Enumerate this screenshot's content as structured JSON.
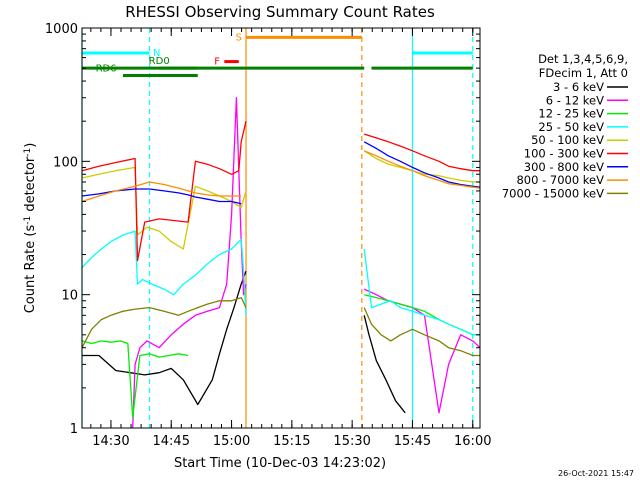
{
  "chart_data": {
    "type": "line",
    "title": "RHESSI Observing Summary Count Rates",
    "xlabel": "Start Time (10-Dec-03 14:23:02)",
    "ylabel_main": "Count Rate (s",
    "ylabel_sup1": "-1",
    "ylabel_mid": " detector",
    "ylabel_sup2": "-1",
    "ylabel_end": ")",
    "y_scale": "log",
    "ylim": [
      1,
      1000
    ],
    "xlim_minutes": [
      14.38,
      16.03
    ],
    "x_ticks": [
      {
        "t": 14.5,
        "label": "14:30"
      },
      {
        "t": 14.75,
        "label": "14:45"
      },
      {
        "t": 15.0,
        "label": "15:00"
      },
      {
        "t": 15.25,
        "label": "15:15"
      },
      {
        "t": 15.5,
        "label": "15:30"
      },
      {
        "t": 15.75,
        "label": "15:45"
      },
      {
        "t": 16.0,
        "label": "16:00"
      }
    ],
    "y_ticks": [
      {
        "v": 1,
        "label": "1"
      },
      {
        "v": 10,
        "label": "10"
      },
      {
        "v": 100,
        "label": "100"
      },
      {
        "v": 1000,
        "label": "1000"
      }
    ],
    "legend_title_1": "Det 1,3,4,5,6,9,",
    "legend_title_2": "FDecim 1, Att 0",
    "legend_placement": "right",
    "series": [
      {
        "name": "3 - 6 keV",
        "color": "#000000",
        "points": [
          [
            14.38,
            3.5
          ],
          [
            14.45,
            3.5
          ],
          [
            14.52,
            2.7
          ],
          [
            14.58,
            2.6
          ],
          [
            14.64,
            2.5
          ],
          [
            14.7,
            2.6
          ],
          [
            14.75,
            2.8
          ],
          [
            14.8,
            2.3
          ],
          [
            14.86,
            1.5
          ],
          [
            14.92,
            2.3
          ],
          [
            14.95,
            3.6
          ],
          [
            14.98,
            5.5
          ],
          [
            15.01,
            8
          ],
          [
            15.04,
            12
          ],
          [
            15.06,
            15
          ],
          [
            null,
            null
          ],
          [
            15.55,
            7
          ],
          [
            15.57,
            5
          ],
          [
            15.6,
            3.2
          ],
          [
            15.64,
            2.3
          ],
          [
            15.68,
            1.6
          ],
          [
            15.72,
            1.3
          ]
        ]
      },
      {
        "name": "6 - 12 keV",
        "color": "#ff00ff",
        "points": [
          [
            14.59,
            1
          ],
          [
            14.6,
            3
          ],
          [
            14.62,
            4
          ],
          [
            14.65,
            4.5
          ],
          [
            14.7,
            4
          ],
          [
            14.75,
            5
          ],
          [
            14.8,
            6
          ],
          [
            14.85,
            7
          ],
          [
            14.9,
            7.5
          ],
          [
            14.95,
            8
          ],
          [
            14.98,
            12
          ],
          [
            15.0,
            40
          ],
          [
            15.02,
            300
          ],
          [
            15.04,
            25
          ],
          [
            15.05,
            10
          ],
          [
            15.06,
            12
          ],
          [
            null,
            null
          ],
          [
            15.55,
            11
          ],
          [
            15.6,
            10
          ],
          [
            15.65,
            9
          ],
          [
            15.7,
            8.5
          ],
          [
            15.75,
            8
          ],
          [
            15.8,
            7
          ],
          [
            15.86,
            1.3
          ],
          [
            15.9,
            3
          ],
          [
            15.95,
            5
          ],
          [
            16.0,
            4.5
          ],
          [
            16.03,
            4
          ]
        ]
      },
      {
        "name": "12 - 25 keV",
        "color": "#00ee00",
        "points": [
          [
            14.38,
            4.5
          ],
          [
            14.42,
            4.3
          ],
          [
            14.46,
            4.5
          ],
          [
            14.5,
            4.4
          ],
          [
            14.54,
            4.5
          ],
          [
            14.57,
            4.3
          ],
          [
            14.59,
            1.2
          ],
          [
            14.62,
            3.5
          ],
          [
            14.66,
            3.6
          ],
          [
            14.7,
            3.4
          ],
          [
            14.74,
            3.5
          ],
          [
            14.78,
            3.6
          ],
          [
            14.82,
            3.5
          ],
          [
            null,
            null
          ],
          [
            15.55,
            10
          ],
          [
            15.6,
            9.5
          ],
          [
            15.65,
            9
          ],
          [
            15.7,
            8.5
          ],
          [
            15.75,
            8
          ],
          [
            15.8,
            7.5
          ],
          [
            15.86,
            6.5
          ],
          [
            15.9,
            6
          ],
          [
            15.95,
            5.5
          ],
          [
            16.0,
            5
          ],
          [
            16.03,
            5
          ]
        ]
      },
      {
        "name": "25 - 50 keV",
        "color": "#00ffff",
        "points": [
          [
            14.38,
            16
          ],
          [
            14.42,
            19
          ],
          [
            14.46,
            22
          ],
          [
            14.5,
            25
          ],
          [
            14.55,
            28
          ],
          [
            14.6,
            30
          ],
          [
            14.61,
            12
          ],
          [
            14.63,
            13
          ],
          [
            14.67,
            12
          ],
          [
            14.72,
            11
          ],
          [
            14.76,
            10
          ],
          [
            14.8,
            12
          ],
          [
            14.85,
            14
          ],
          [
            14.9,
            17
          ],
          [
            14.95,
            20
          ],
          [
            15.0,
            22
          ],
          [
            15.04,
            26
          ],
          [
            15.05,
            15
          ],
          [
            15.06,
            7
          ],
          [
            null,
            null
          ],
          [
            15.55,
            22
          ],
          [
            15.58,
            8
          ],
          [
            15.62,
            8.5
          ],
          [
            15.66,
            9
          ],
          [
            15.7,
            8
          ],
          [
            15.75,
            7.5
          ],
          [
            15.8,
            7
          ],
          [
            15.86,
            6.5
          ],
          [
            15.9,
            6
          ],
          [
            15.95,
            5.5
          ],
          [
            16.0,
            5
          ],
          [
            16.03,
            5
          ]
        ]
      },
      {
        "name": "50 - 100 keV",
        "color": "#cccc00",
        "points": [
          [
            14.38,
            75
          ],
          [
            14.45,
            80
          ],
          [
            14.52,
            85
          ],
          [
            14.6,
            90
          ],
          [
            14.61,
            28
          ],
          [
            14.65,
            32
          ],
          [
            14.7,
            30
          ],
          [
            14.75,
            25
          ],
          [
            14.8,
            22
          ],
          [
            14.85,
            65
          ],
          [
            14.9,
            60
          ],
          [
            14.95,
            55
          ],
          [
            15.0,
            50
          ],
          [
            15.04,
            45
          ],
          [
            15.06,
            60
          ],
          [
            null,
            null
          ],
          [
            15.55,
            120
          ],
          [
            15.6,
            105
          ],
          [
            15.65,
            95
          ],
          [
            15.7,
            90
          ],
          [
            15.75,
            85
          ],
          [
            15.8,
            80
          ],
          [
            15.86,
            78
          ],
          [
            15.9,
            75
          ],
          [
            15.95,
            72
          ],
          [
            16.0,
            70
          ],
          [
            16.03,
            70
          ]
        ]
      },
      {
        "name": "100 - 300 keV",
        "color": "#ff0000",
        "points": [
          [
            14.38,
            85
          ],
          [
            14.45,
            92
          ],
          [
            14.52,
            98
          ],
          [
            14.6,
            105
          ],
          [
            14.61,
            18
          ],
          [
            14.64,
            35
          ],
          [
            14.7,
            37
          ],
          [
            14.76,
            36
          ],
          [
            14.82,
            35
          ],
          [
            14.85,
            100
          ],
          [
            14.9,
            95
          ],
          [
            14.95,
            88
          ],
          [
            15.0,
            80
          ],
          [
            15.03,
            85
          ],
          [
            15.04,
            140
          ],
          [
            15.06,
            200
          ],
          [
            null,
            null
          ],
          [
            15.55,
            160
          ],
          [
            15.6,
            150
          ],
          [
            15.65,
            140
          ],
          [
            15.7,
            130
          ],
          [
            15.75,
            120
          ],
          [
            15.8,
            110
          ],
          [
            15.86,
            100
          ],
          [
            15.9,
            92
          ],
          [
            15.95,
            88
          ],
          [
            16.0,
            85
          ],
          [
            16.03,
            85
          ]
        ]
      },
      {
        "name": "300 - 800 keV",
        "color": "#0000ff",
        "points": [
          [
            14.38,
            55
          ],
          [
            14.45,
            57
          ],
          [
            14.52,
            60
          ],
          [
            14.6,
            62
          ],
          [
            14.66,
            62
          ],
          [
            14.72,
            60
          ],
          [
            14.78,
            58
          ],
          [
            14.82,
            56
          ],
          [
            14.85,
            54
          ],
          [
            14.9,
            52
          ],
          [
            14.95,
            50
          ],
          [
            15.0,
            50
          ],
          [
            15.04,
            48
          ],
          [
            null,
            null
          ],
          [
            15.55,
            140
          ],
          [
            15.6,
            125
          ],
          [
            15.65,
            110
          ],
          [
            15.7,
            100
          ],
          [
            15.75,
            90
          ],
          [
            15.8,
            82
          ],
          [
            15.86,
            75
          ],
          [
            15.9,
            70
          ],
          [
            15.95,
            67
          ],
          [
            16.0,
            65
          ],
          [
            16.03,
            64
          ]
        ]
      },
      {
        "name": "800 - 7000 keV",
        "color": "#ff8c00",
        "points": [
          [
            14.38,
            50
          ],
          [
            14.45,
            55
          ],
          [
            14.52,
            60
          ],
          [
            14.6,
            65
          ],
          [
            14.66,
            70
          ],
          [
            14.72,
            67
          ],
          [
            14.78,
            63
          ],
          [
            14.82,
            60
          ],
          [
            14.85,
            58
          ],
          [
            14.9,
            56
          ],
          [
            14.95,
            55
          ],
          [
            15.0,
            55
          ],
          [
            15.04,
            55
          ],
          [
            null,
            null
          ],
          [
            15.55,
            120
          ],
          [
            15.6,
            110
          ],
          [
            15.65,
            100
          ],
          [
            15.7,
            92
          ],
          [
            15.75,
            85
          ],
          [
            15.8,
            78
          ],
          [
            15.86,
            72
          ],
          [
            15.9,
            68
          ],
          [
            15.95,
            66
          ],
          [
            16.0,
            64
          ],
          [
            16.03,
            63
          ]
        ]
      },
      {
        "name": "7000 - 15000 keV",
        "color": "#808000",
        "points": [
          [
            14.38,
            4
          ],
          [
            14.42,
            5.5
          ],
          [
            14.46,
            6.5
          ],
          [
            14.5,
            7
          ],
          [
            14.55,
            7.5
          ],
          [
            14.6,
            7.8
          ],
          [
            14.66,
            8
          ],
          [
            14.72,
            7.5
          ],
          [
            14.78,
            7
          ],
          [
            14.82,
            7.5
          ],
          [
            14.86,
            8
          ],
          [
            14.9,
            8.5
          ],
          [
            14.95,
            9
          ],
          [
            15.0,
            9
          ],
          [
            15.04,
            9.5
          ],
          [
            15.06,
            8
          ],
          [
            null,
            null
          ],
          [
            15.55,
            8
          ],
          [
            15.58,
            6
          ],
          [
            15.62,
            5
          ],
          [
            15.66,
            4.5
          ],
          [
            15.7,
            5
          ],
          [
            15.75,
            5.5
          ],
          [
            15.8,
            5
          ],
          [
            15.86,
            4.5
          ],
          [
            15.9,
            4
          ],
          [
            15.95,
            3.8
          ],
          [
            16.0,
            3.5
          ],
          [
            16.03,
            3.5
          ]
        ]
      }
    ],
    "annotations": {
      "flags": [
        {
          "label": "N",
          "color": "#00ffff",
          "level": 650,
          "segments": [
            [
              14.38,
              14.66
            ],
            [
              15.75,
              16.0
            ]
          ],
          "label_t": 14.69
        },
        {
          "label": "S",
          "color": "#ff8c00",
          "level": 850,
          "segments": [
            [
              15.06,
              15.54
            ]
          ],
          "label_t": 15.03
        },
        {
          "label": "F",
          "color": "#ff0000",
          "level": 560,
          "segments": [
            [
              14.97,
              15.03
            ]
          ],
          "label_t": 14.94
        }
      ],
      "daynight": {
        "color": "#008000",
        "level": 500,
        "segments": [
          [
            14.38,
            14.86
          ],
          [
            14.86,
            15.55
          ],
          [
            15.58,
            16.0
          ]
        ]
      },
      "rd_labels": [
        {
          "label": "RD0",
          "t": 14.7,
          "level": 500,
          "segment": [
            14.7,
            14.86
          ]
        },
        {
          "label": "RD6",
          "t": 14.48,
          "level": 440,
          "segment": [
            14.55,
            14.86
          ]
        }
      ],
      "vlines": [
        {
          "t": 14.38,
          "color": "#00ffff",
          "dash": false
        },
        {
          "t": 14.66,
          "color": "#00ffff",
          "dash": true
        },
        {
          "t": 15.06,
          "color": "#ff8c00",
          "dash": false
        },
        {
          "t": 15.54,
          "color": "#ff8c00",
          "dash": true
        },
        {
          "t": 15.75,
          "color": "#00ffff",
          "dash": false
        },
        {
          "t": 16.0,
          "color": "#00ffff",
          "dash": true
        }
      ]
    }
  },
  "stamp": "26-Oct-2021 15:47"
}
